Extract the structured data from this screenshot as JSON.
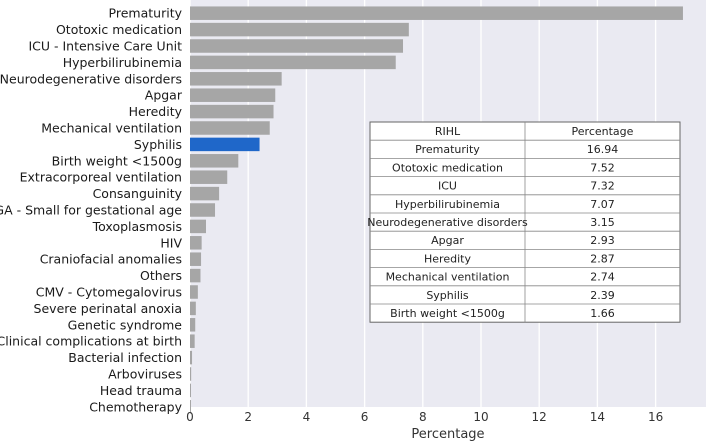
{
  "chart_data": {
    "type": "bar",
    "orientation": "horizontal",
    "xlabel": "Percentage",
    "xlim": [
      0,
      17.5
    ],
    "xticks": [
      0,
      2,
      4,
      6,
      8,
      10,
      12,
      14,
      16
    ],
    "grid": true,
    "highlight": "Syphilis",
    "colors": {
      "bar": "#a6a6a6",
      "highlight": "#1f67c9",
      "background": "#eaeaf2",
      "grid": "#ffffff"
    },
    "categories": [
      "Prematurity",
      "Ototoxic medication",
      "ICU - Intensive Care Unit",
      "Hyperbilirubinemia",
      "Neurodegenerative disorders",
      "Apgar",
      "Heredity",
      "Mechanical ventilation",
      "Syphilis",
      "Birth weight <1500g",
      "Extracorporeal ventilation",
      "Consanguinity",
      "SGA - Small for gestational age",
      "Toxoplasmosis",
      "HIV",
      "Craniofacial anomalies",
      "Others",
      "CMV - Cytomegalovirus",
      "Severe perinatal anoxia",
      "Genetic syndrome",
      "Clinical complications at birth",
      "Bacterial infection",
      "Arboviruses",
      "Head trauma",
      "Chemotherapy"
    ],
    "values": [
      16.94,
      7.52,
      7.32,
      7.07,
      3.15,
      2.93,
      2.87,
      2.74,
      2.39,
      1.66,
      1.28,
      1.0,
      0.86,
      0.55,
      0.4,
      0.38,
      0.36,
      0.27,
      0.2,
      0.18,
      0.16,
      0.07,
      0.04,
      0.03,
      0.02
    ],
    "table": {
      "headers": [
        "RIHL",
        "Percentage"
      ],
      "rows": [
        [
          "Prematurity",
          "16.94"
        ],
        [
          "Ototoxic medication",
          "7.52"
        ],
        [
          "ICU",
          "7.32"
        ],
        [
          "Hyperbilirubinemia",
          "7.07"
        ],
        [
          "Neurodegenerative disorders",
          "3.15"
        ],
        [
          "Apgar",
          "2.93"
        ],
        [
          "Heredity",
          "2.87"
        ],
        [
          "Mechanical ventilation",
          "2.74"
        ],
        [
          "Syphilis",
          "2.39"
        ],
        [
          "Birth weight <1500g",
          "1.66"
        ]
      ]
    }
  }
}
